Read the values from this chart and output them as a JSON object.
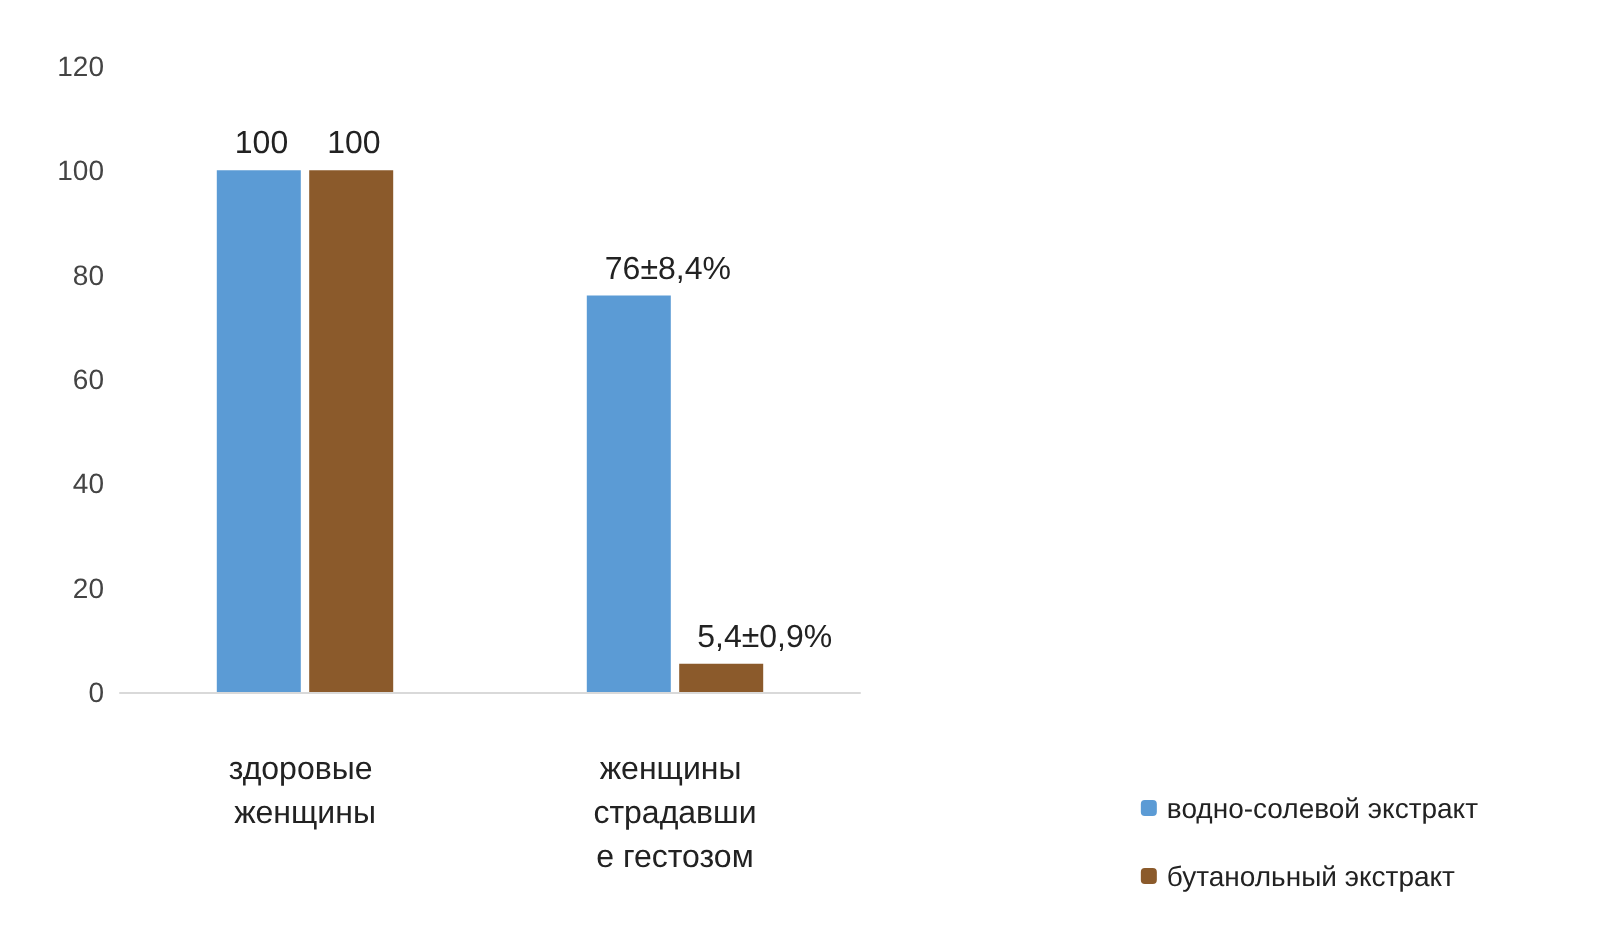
{
  "chart_data": {
    "type": "bar",
    "categories": [
      "здоровые женщины",
      "женщины страдавшие гестозом"
    ],
    "series": [
      {
        "name": "водно-солевой экстракт",
        "color": "#5b9bd5",
        "values": [
          100,
          76
        ],
        "value_labels": [
          "100",
          "76±8,4%"
        ]
      },
      {
        "name": "бутанольный экстракт",
        "color": "#8b5a2b",
        "values": [
          100,
          5.4
        ],
        "value_labels": [
          "100",
          "5,4±0,9%"
        ]
      }
    ],
    "ylim": [
      0,
      120
    ],
    "yticks": [
      0,
      20,
      40,
      60,
      80,
      100,
      120
    ],
    "grid": false,
    "legend": "bottom right"
  }
}
